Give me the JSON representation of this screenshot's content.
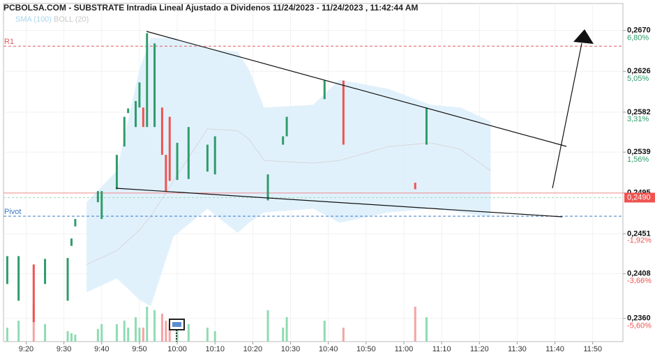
{
  "chart_data": {
    "type": "candlestick",
    "title": "PCBOLSA.COM - SUBSTRATE Intradia Lineal Ajustado a Dividenos 11/24/2023 - 11/24/2023 , 11:42:44 AM",
    "legend": [
      {
        "name": "SMA (100)",
        "color": "#a9d6ef"
      },
      {
        "name": "BOLL (20)",
        "color": "#c8c8c8"
      }
    ],
    "xlim": [
      554,
      718
    ],
    "xticks": [
      {
        "value": 560,
        "label": "9:20"
      },
      {
        "value": 570,
        "label": "9:30"
      },
      {
        "value": 580,
        "label": "9:40"
      },
      {
        "value": 590,
        "label": "9:50"
      },
      {
        "value": 600,
        "label": "10:00"
      },
      {
        "value": 610,
        "label": "10:10"
      },
      {
        "value": 620,
        "label": "10:20"
      },
      {
        "value": 630,
        "label": "10:30"
      },
      {
        "value": 640,
        "label": "10:40"
      },
      {
        "value": 650,
        "label": "10:50"
      },
      {
        "value": 660,
        "label": "11:00"
      },
      {
        "value": 670,
        "label": "11:10"
      },
      {
        "value": 680,
        "label": "11:20"
      },
      {
        "value": 690,
        "label": "11:30"
      },
      {
        "value": 700,
        "label": "11:40"
      },
      {
        "value": 710,
        "label": "11:50"
      }
    ],
    "ylim": [
      0.2335,
      0.2699
    ],
    "yticks": [
      {
        "value": 0.267,
        "label": "0,2670"
      },
      {
        "value": 0.2626,
        "label": "0,2626"
      },
      {
        "value": 0.2582,
        "label": "0,2582"
      },
      {
        "value": 0.2539,
        "label": "0,2539"
      },
      {
        "value": 0.2495,
        "label": "0,2495"
      },
      {
        "value": 0.2451,
        "label": "0,2451"
      },
      {
        "value": 0.2408,
        "label": "0,2408"
      },
      {
        "value": 0.236,
        "label": "0,2360"
      }
    ],
    "y2lim": [
      -6.6,
      7.96
    ],
    "y2ticks": [
      {
        "value": 6.8,
        "label": "6,80%"
      },
      {
        "value": 5.05,
        "label": "5,05%"
      },
      {
        "value": 3.31,
        "label": "3,31%"
      },
      {
        "value": 1.56,
        "label": "1,56%"
      },
      {
        "value": -1.92,
        "label": "-1,92%"
      },
      {
        "value": -3.66,
        "label": "-3,66%"
      },
      {
        "value": -5.6,
        "label": "-5,60%"
      }
    ],
    "grid": true,
    "up_color": "#2e9c6a",
    "down_color": "#ef5350",
    "up_volume_color": "#8edcb2",
    "down_volume_color": "#f5a3a3",
    "x": [
      555,
      558,
      562,
      565,
      571,
      572,
      573,
      579,
      580,
      584,
      586,
      587,
      589,
      590,
      591,
      592,
      594,
      596,
      597,
      598,
      600,
      603,
      608,
      610,
      624,
      628,
      629,
      639,
      644,
      663,
      666
    ],
    "open": [
      0.2397,
      0.2379,
      0.2418,
      0.2397,
      0.2379,
      0.2438,
      0.2459,
      0.2485,
      0.2467,
      0.2499,
      0.2545,
      0.2581,
      0.2566,
      0.2587,
      0.2587,
      0.2566,
      0.2566,
      0.2587,
      0.2536,
      0.2577,
      0.2509,
      0.251,
      0.2518,
      0.2515,
      0.2487,
      0.2547,
      0.2556,
      0.2596,
      0.2616,
      0.2506,
      0.2547
    ],
    "close": [
      0.2427,
      0.2427,
      0.2356,
      0.2424,
      0.2425,
      0.2446,
      0.2467,
      0.2497,
      0.2497,
      0.2536,
      0.2577,
      0.2586,
      0.2594,
      0.2614,
      0.2566,
      0.2667,
      0.2656,
      0.2536,
      0.2497,
      0.2508,
      0.2549,
      0.2566,
      0.2547,
      0.2556,
      0.2515,
      0.2556,
      0.2577,
      0.2616,
      0.2547,
      0.2499,
      0.2587
    ],
    "volume": [
      20,
      30,
      55,
      25,
      15,
      12,
      10,
      18,
      25,
      25,
      30,
      20,
      35,
      20,
      20,
      50,
      45,
      40,
      30,
      25,
      20,
      25,
      20,
      15,
      45,
      20,
      35,
      30,
      20,
      50,
      35
    ],
    "boll_x": [
      576,
      584,
      590,
      593,
      599,
      608,
      616,
      619,
      623,
      636,
      643,
      656,
      667,
      675,
      683
    ],
    "boll_upper": [
      0.2485,
      0.2519,
      0.2628,
      0.2662,
      0.2662,
      0.265,
      0.2647,
      0.2628,
      0.2587,
      0.259,
      0.2617,
      0.2607,
      0.259,
      0.2587,
      0.2572
    ],
    "boll_lower": [
      0.2388,
      0.2403,
      0.238,
      0.2373,
      0.2448,
      0.2478,
      0.2452,
      0.2463,
      0.2474,
      0.2478,
      0.2463,
      0.2474,
      0.2478,
      0.2474,
      0.2469
    ],
    "sma": [
      0.2418,
      0.2433,
      0.2455,
      0.247,
      0.2508,
      0.2564,
      0.2562,
      0.2553,
      0.253,
      0.2527,
      0.253,
      0.2545,
      0.2549,
      0.2542,
      0.2519
    ],
    "reference_lines": [
      {
        "label": "R1",
        "value": 0.2653,
        "color": "#e05a5a",
        "dashed": true
      },
      {
        "label": "Pivot",
        "value": 0.247,
        "color": "#3a78c8",
        "dashed": true
      },
      {
        "value": 0.2495,
        "color": "#f08a8a",
        "dashed": false
      }
    ],
    "last_price": {
      "value": 0.249,
      "label": "0,2490",
      "color": "#ef5350"
    }
  }
}
